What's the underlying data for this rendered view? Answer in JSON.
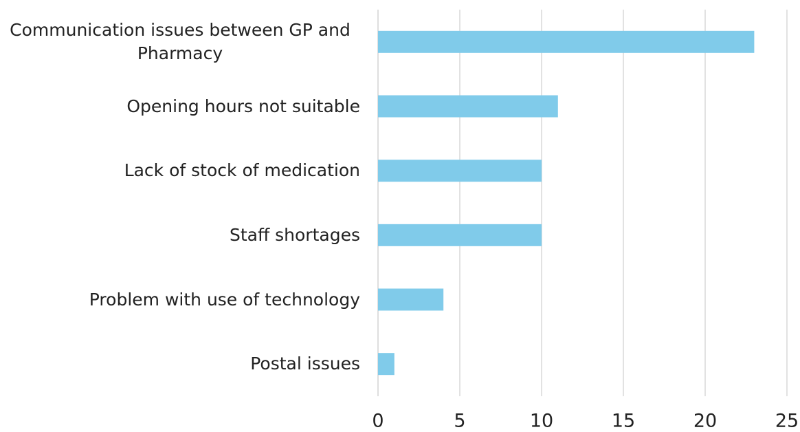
{
  "chart_data": {
    "type": "bar",
    "orientation": "horizontal",
    "categories": [
      "Communication issues between GP and Pharmacy",
      "Opening hours not suitable",
      "Lack of stock of medication",
      "Staff shortages",
      "Problem with use of  technology",
      "Postal issues"
    ],
    "values": [
      23,
      11,
      10,
      10,
      4,
      1
    ],
    "color": "#80cbea",
    "xlim": [
      0,
      25
    ],
    "xticks": [
      0,
      5,
      10,
      15,
      20,
      25
    ],
    "grid": true
  }
}
